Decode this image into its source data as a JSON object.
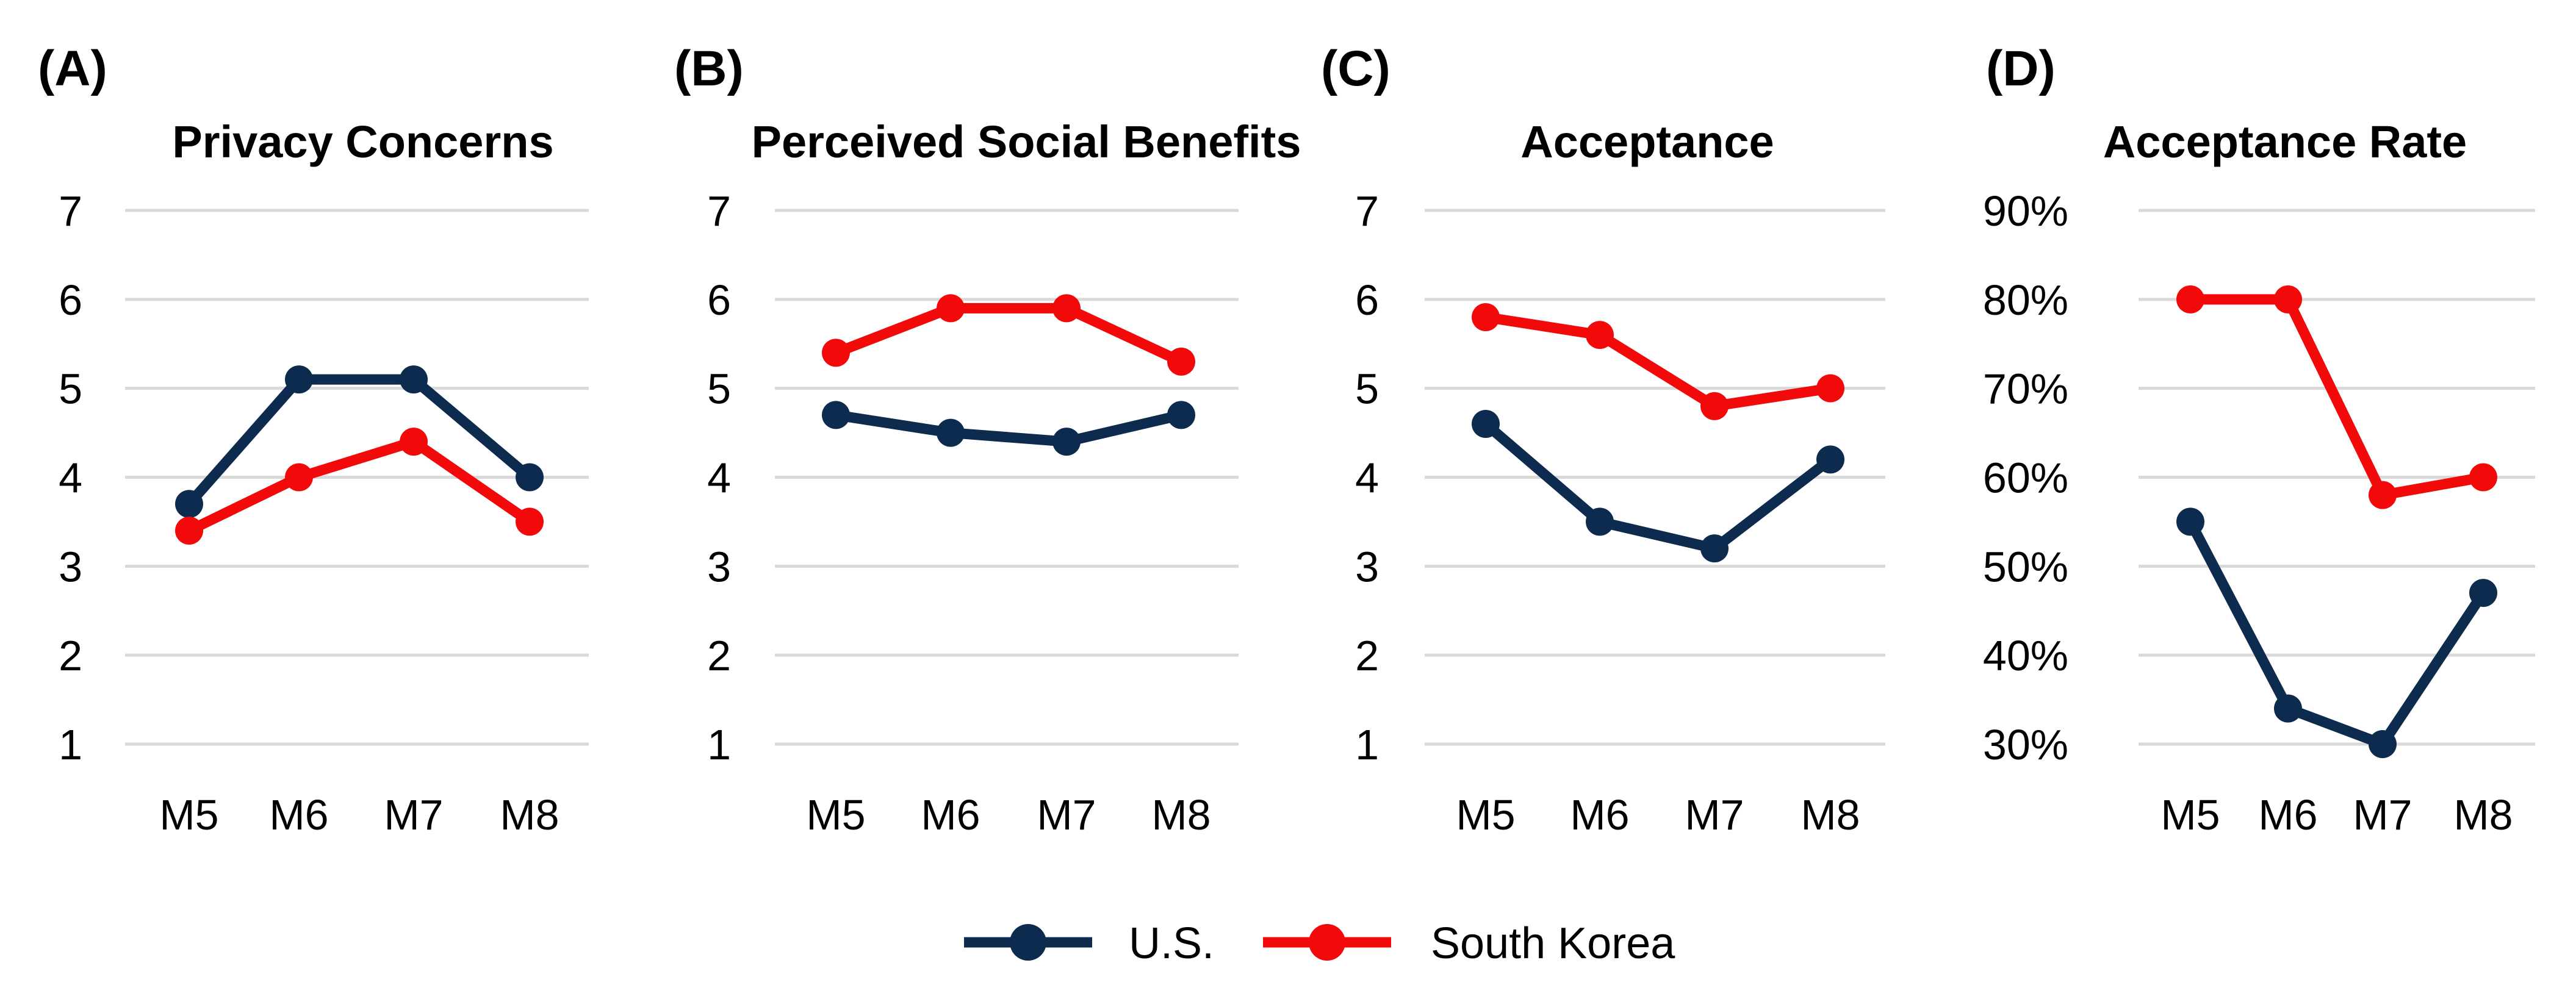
{
  "colors": {
    "us": "#0d2a4f",
    "korea": "#f20a0a",
    "grid": "#d9d9d9"
  },
  "legend": [
    {
      "label": "U.S.",
      "color_key": "us"
    },
    {
      "label": "South Korea",
      "color_key": "korea"
    }
  ],
  "chart_data": [
    {
      "type": "line",
      "panel_label": "(A)",
      "title": "Privacy Concerns",
      "categories": [
        "M5",
        "M6",
        "M7",
        "M8"
      ],
      "ylim": [
        1,
        7
      ],
      "yticks": [
        1,
        2,
        3,
        4,
        5,
        6,
        7
      ],
      "ytick_labels": [
        "1",
        "2",
        "3",
        "4",
        "5",
        "6",
        "7"
      ],
      "grid": true,
      "series": [
        {
          "name": "U.S.",
          "values": [
            3.7,
            5.1,
            5.1,
            4.0
          ]
        },
        {
          "name": "South Korea",
          "values": [
            3.4,
            4.0,
            4.4,
            3.5
          ]
        }
      ]
    },
    {
      "type": "line",
      "panel_label": "(B)",
      "title": "Perceived Social Benefits",
      "categories": [
        "M5",
        "M6",
        "M7",
        "M8"
      ],
      "ylim": [
        1,
        7
      ],
      "yticks": [
        1,
        2,
        3,
        4,
        5,
        6,
        7
      ],
      "ytick_labels": [
        "1",
        "2",
        "3",
        "4",
        "5",
        "6",
        "7"
      ],
      "grid": true,
      "series": [
        {
          "name": "U.S.",
          "values": [
            4.7,
            4.5,
            4.4,
            4.7
          ]
        },
        {
          "name": "South Korea",
          "values": [
            5.4,
            5.9,
            5.9,
            5.3
          ]
        }
      ]
    },
    {
      "type": "line",
      "panel_label": "(C)",
      "title": "Acceptance",
      "categories": [
        "M5",
        "M6",
        "M7",
        "M8"
      ],
      "ylim": [
        1,
        7
      ],
      "yticks": [
        1,
        2,
        3,
        4,
        5,
        6,
        7
      ],
      "ytick_labels": [
        "1",
        "2",
        "3",
        "4",
        "5",
        "6",
        "7"
      ],
      "grid": true,
      "series": [
        {
          "name": "U.S.",
          "values": [
            4.6,
            3.5,
            3.2,
            4.2
          ]
        },
        {
          "name": "South Korea",
          "values": [
            5.8,
            5.6,
            4.8,
            5.0
          ]
        }
      ]
    },
    {
      "type": "line",
      "panel_label": "(D)",
      "title": "Acceptance Rate",
      "categories": [
        "M5",
        "M6",
        "M7",
        "M8"
      ],
      "ylim": [
        30,
        90
      ],
      "yticks": [
        30,
        40,
        50,
        60,
        70,
        80,
        90
      ],
      "ytick_labels": [
        "30%",
        "40%",
        "50%",
        "60%",
        "70%",
        "80%",
        "90%"
      ],
      "grid": true,
      "series": [
        {
          "name": "U.S.",
          "values": [
            55,
            34,
            30,
            47
          ]
        },
        {
          "name": "South Korea",
          "values": [
            80,
            80,
            58,
            60
          ]
        }
      ]
    }
  ]
}
